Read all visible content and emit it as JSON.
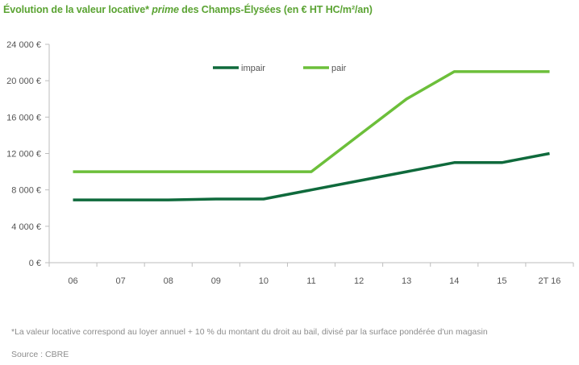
{
  "title": {
    "part1": "Évolution de la valeur locative* ",
    "part2": "prime",
    "part3": " des Champs-Élysées (en € HT HC/m²/an)"
  },
  "footnote": "*La valeur locative correspond au loyer annuel + 10 % du montant du droit au bail, divisé par la surface pondérée d'un magasin",
  "source": "Source : CBRE",
  "colors": {
    "impair": "#0f6a3c",
    "pair": "#6cbf3a",
    "axis": "#bdbdbd",
    "title": "#5aa332"
  },
  "chart_data": {
    "type": "line",
    "categories": [
      "06",
      "07",
      "08",
      "09",
      "10",
      "11",
      "12",
      "13",
      "14",
      "15",
      "2T 16"
    ],
    "series": [
      {
        "name": "impair",
        "values": [
          6900,
          6900,
          6900,
          7000,
          7000,
          8000,
          9000,
          10000,
          11000,
          11000,
          12000
        ]
      },
      {
        "name": "pair",
        "values": [
          10000,
          10000,
          10000,
          10000,
          10000,
          10000,
          14000,
          18000,
          21000,
          21000,
          21000
        ]
      }
    ],
    "yticks": [
      "0 €",
      "4 000 €",
      "8 000 €",
      "12 000 €",
      "16 000 €",
      "20 000 €",
      "24 000 €"
    ],
    "ylim": [
      0,
      24000
    ],
    "grid": false,
    "legend_position": "top-center"
  }
}
